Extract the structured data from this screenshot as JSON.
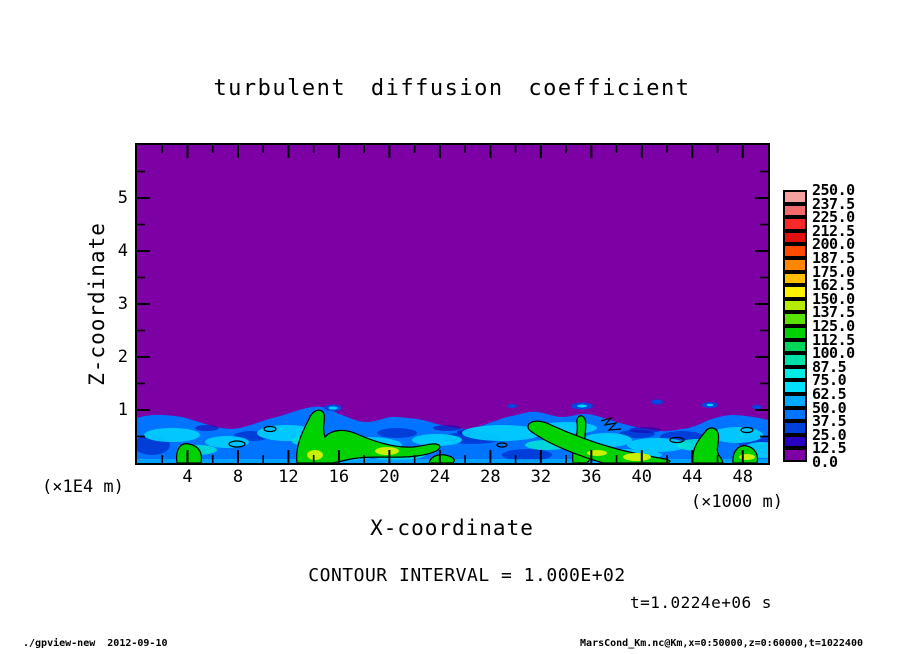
{
  "page": {
    "background": "#ffffff"
  },
  "chart_data": {
    "type": "heatmap",
    "title": "turbulent diffusion coefficient",
    "xlabel": "X-coordinate",
    "x_units_label": "(×1000 m)",
    "ylabel": "Z-coordinate",
    "y_units_label": "(×1E4 m)",
    "xlim": [
      0,
      50
    ],
    "ylim": [
      0,
      6
    ],
    "x_ticks_major": [
      4,
      8,
      12,
      16,
      20,
      24,
      28,
      32,
      36,
      40,
      44,
      48
    ],
    "x_ticks_minor": [
      2,
      6,
      10,
      14,
      18,
      22,
      26,
      30,
      34,
      38,
      42,
      46
    ],
    "y_ticks_major": [
      1,
      2,
      3,
      4,
      5
    ],
    "y_ticks_minor": [
      0.5,
      1.5,
      2.5,
      3.5,
      4.5,
      5.5
    ],
    "contour_interval_text": "CONTOUR INTERVAL = 1.000E+02",
    "time_text": "t=1.0224e+06 s",
    "contour_interval_value": 100.0,
    "colorbar": {
      "position": "right",
      "levels": [
        "0.0",
        "12.5",
        "25.0",
        "37.5",
        "50.0",
        "62.5",
        "75.0",
        "87.5",
        "100.0",
        "112.5",
        "125.0",
        "137.5",
        "150.0",
        "162.5",
        "175.0",
        "187.5",
        "200.0",
        "212.5",
        "225.0",
        "237.5",
        "250.0"
      ],
      "colors_bottom_to_top": [
        "#7d00a5",
        "#2800be",
        "#0041dc",
        "#0073ff",
        "#00aaff",
        "#00e1ff",
        "#00ebe1",
        "#00e1aa",
        "#00d75a",
        "#00d200",
        "#5ae100",
        "#b4eb00",
        "#fff000",
        "#ffbe00",
        "#ff8700",
        "#ff4b00",
        "#e10f0f",
        "#fa2828",
        "#f56b6b",
        "#f5a0a0"
      ]
    },
    "field_summary": "Value ≈ 0 (purple) above z ≈ 0.8×1E4 m; shallow turbulent layer below with values ~25–150: blue/cyan background, green plumes exceeding the 100 contour (outlined in black), wavy interface with small detached blue patches."
  },
  "footer": {
    "left_text": "./gpview-new  2012-09-10",
    "right_text": "MarsCond_Km.nc@Km,x=0:50000,z=0:60000,t=1022400"
  }
}
